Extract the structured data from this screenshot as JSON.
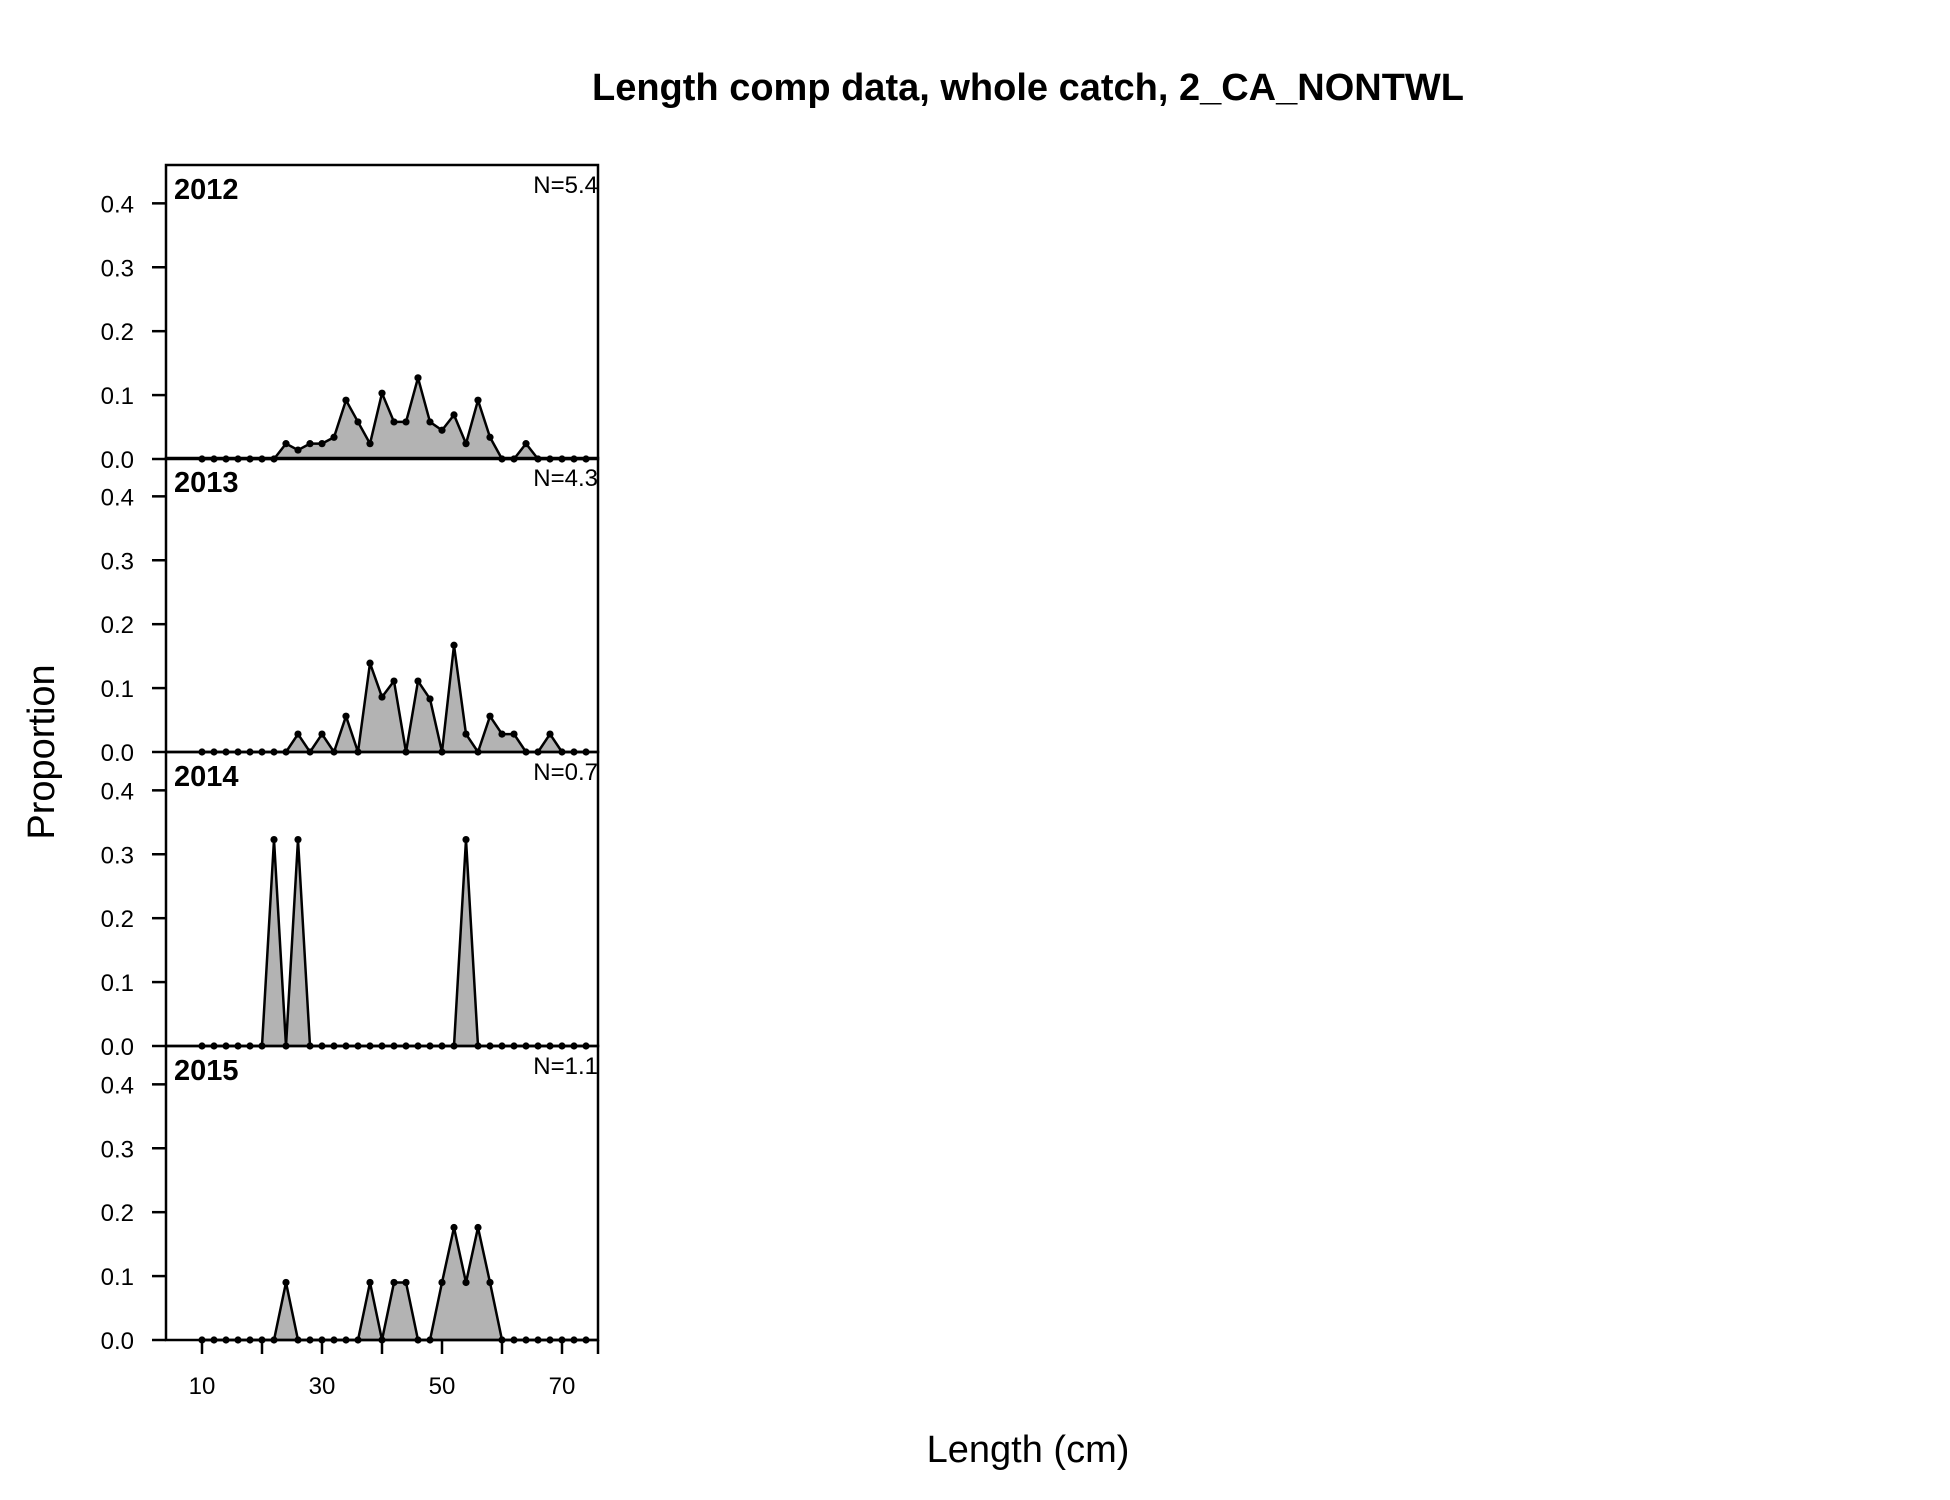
{
  "chart_data": {
    "type": "area",
    "title": "Length comp data, whole catch, 2_CA_NONTWL",
    "xlabel": "Length (cm)",
    "ylabel": "Proportion",
    "xlim": [
      4,
      76
    ],
    "ylim": [
      0,
      0.46
    ],
    "x_ticks": [
      10,
      20,
      30,
      40,
      50,
      60,
      70,
      76
    ],
    "x_tick_labels": [
      "10",
      "30",
      "50",
      "70"
    ],
    "x_tick_label_values": [
      10,
      30,
      50,
      70
    ],
    "y_ticks": [
      0.0,
      0.1,
      0.2,
      0.3,
      0.4
    ],
    "y_tick_labels": [
      "0.0",
      "0.1",
      "0.2",
      "0.3",
      "0.4"
    ],
    "bins": [
      10,
      12,
      14,
      16,
      18,
      20,
      22,
      24,
      26,
      28,
      30,
      32,
      34,
      36,
      38,
      40,
      42,
      44,
      46,
      48,
      50,
      52,
      54,
      56,
      58,
      60,
      62,
      64,
      66,
      68,
      70,
      72,
      74
    ],
    "panels": [
      {
        "year": "2012",
        "n_label": "N=5.4",
        "values": [
          0,
          0,
          0,
          0,
          0,
          0,
          0,
          0.024,
          0.014,
          0.024,
          0.024,
          0.034,
          0.092,
          0.058,
          0.024,
          0.103,
          0.058,
          0.058,
          0.127,
          0.058,
          0.045,
          0.069,
          0.024,
          0.092,
          0.034,
          0,
          0,
          0.024,
          0,
          0,
          0,
          0,
          0
        ]
      },
      {
        "year": "2013",
        "n_label": "N=4.3",
        "values": [
          0,
          0,
          0,
          0,
          0,
          0,
          0,
          0,
          0.028,
          0,
          0.028,
          0,
          0.056,
          0,
          0.139,
          0.086,
          0.111,
          0,
          0.111,
          0.083,
          0,
          0.167,
          0.028,
          0,
          0.056,
          0.028,
          0.028,
          0,
          0,
          0.028,
          0,
          0,
          0
        ]
      },
      {
        "year": "2014",
        "n_label": "N=0.7",
        "values": [
          0,
          0,
          0,
          0,
          0,
          0,
          0.323,
          0,
          0.323,
          0,
          0,
          0,
          0,
          0,
          0,
          0,
          0,
          0,
          0,
          0,
          0,
          0,
          0.323,
          0,
          0,
          0,
          0,
          0,
          0,
          0,
          0,
          0,
          0
        ]
      },
      {
        "year": "2015",
        "n_label": "N=1.1",
        "values": [
          0,
          0,
          0,
          0,
          0,
          0,
          0,
          0.09,
          0,
          0,
          0,
          0,
          0,
          0,
          0.09,
          0,
          0.09,
          0.09,
          0,
          0,
          0.09,
          0.176,
          0.09,
          0.176,
          0.09,
          0,
          0,
          0,
          0,
          0,
          0,
          0,
          0
        ]
      }
    ]
  }
}
